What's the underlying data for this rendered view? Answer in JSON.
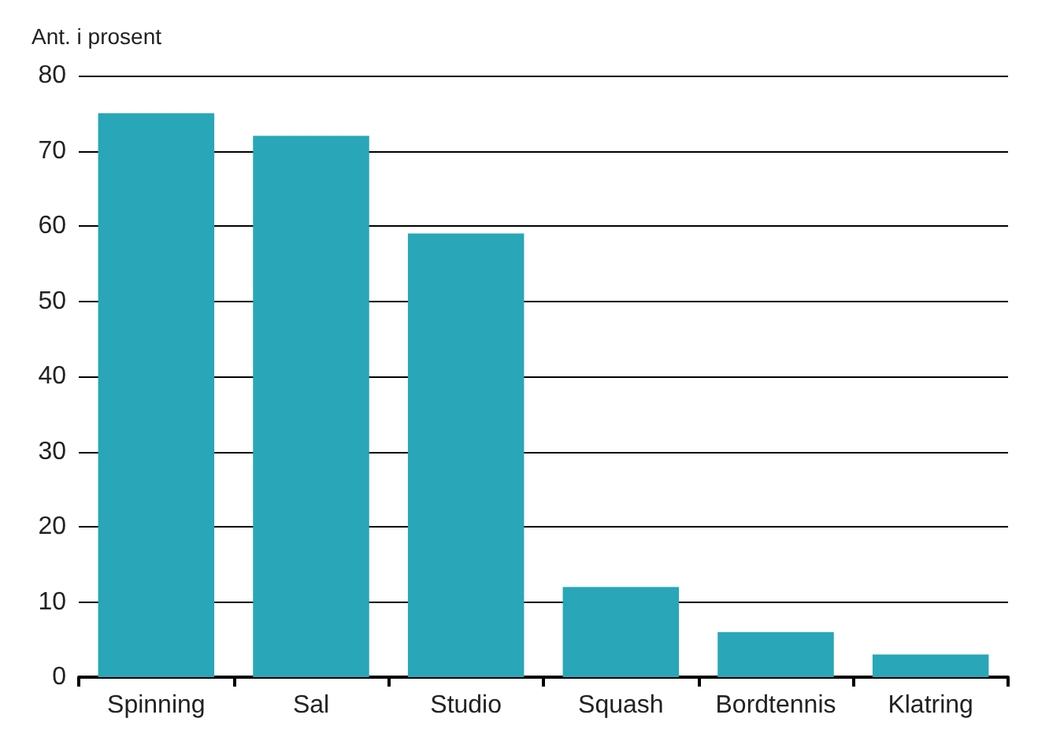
{
  "chart_data": {
    "type": "bar",
    "ylabel": "Ant. i prosent",
    "categories": [
      "Spinning",
      "Sal",
      "Studio",
      "Squash",
      "Bordtennis",
      "Klatring"
    ],
    "values": [
      75,
      72,
      59,
      12,
      6,
      3
    ],
    "color": "#29a6b8",
    "ylim": [
      0,
      80
    ],
    "yticks": [
      0,
      10,
      20,
      30,
      40,
      50,
      60,
      70,
      80
    ],
    "grid": "y"
  }
}
